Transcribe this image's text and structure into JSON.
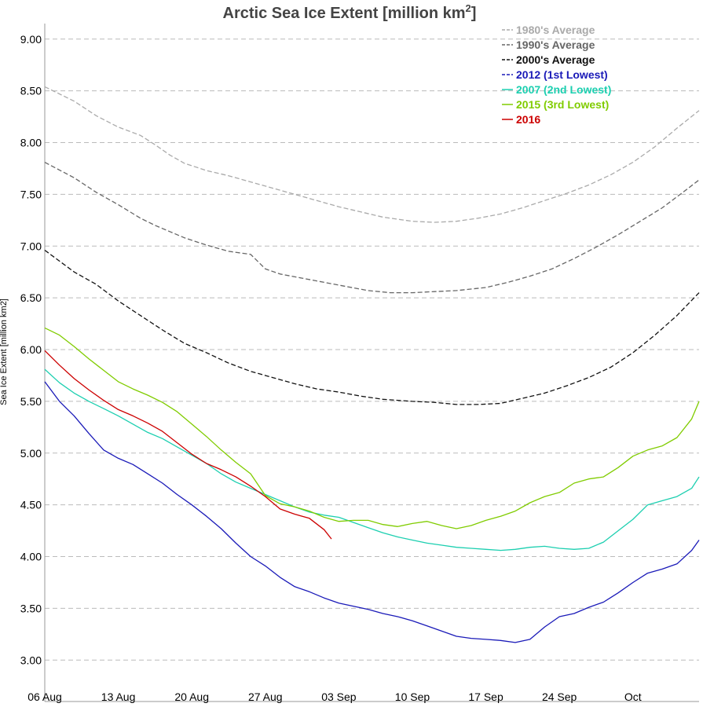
{
  "chart_data": {
    "type": "line",
    "title": "Arctic Sea Ice Extent [million km",
    "title_superscript": "2",
    "title_suffix": "]",
    "ylabel": "Sea Ice Extent [million km2]",
    "xlabel": "",
    "x_domain": [
      0,
      89
    ],
    "ylim": [
      2.6,
      9.15
    ],
    "grid": "horizontal-dashed",
    "legend_position": "top-right",
    "x_ticks": [
      {
        "x": 0,
        "label": "06 Aug"
      },
      {
        "x": 10,
        "label": "13 Aug"
      },
      {
        "x": 20,
        "label": "20 Aug"
      },
      {
        "x": 30,
        "label": "27 Aug"
      },
      {
        "x": 40,
        "label": "03 Sep"
      },
      {
        "x": 50,
        "label": "10 Sep"
      },
      {
        "x": 60,
        "label": "17 Sep"
      },
      {
        "x": 70,
        "label": "24 Sep"
      },
      {
        "x": 80,
        "label": "Oct"
      }
    ],
    "y_ticks": [
      "3.00",
      "3.50",
      "4.00",
      "4.50",
      "5.00",
      "5.50",
      "6.00",
      "6.50",
      "7.00",
      "7.50",
      "8.00",
      "8.50",
      "9.00"
    ],
    "series": [
      {
        "name": "1980's Average",
        "color": "#aaaaaa",
        "dashed": true,
        "x": [
          0,
          4,
          7,
          10,
          13,
          15,
          17,
          19,
          22,
          25,
          28,
          31,
          34,
          37,
          40,
          43,
          46,
          50,
          53,
          56,
          59,
          62,
          65,
          68,
          71,
          74,
          77,
          80,
          83,
          86,
          89
        ],
        "y": [
          8.54,
          8.4,
          8.26,
          8.15,
          8.07,
          7.98,
          7.88,
          7.8,
          7.73,
          7.68,
          7.62,
          7.56,
          7.5,
          7.44,
          7.38,
          7.33,
          7.28,
          7.24,
          7.23,
          7.24,
          7.27,
          7.31,
          7.37,
          7.44,
          7.51,
          7.59,
          7.69,
          7.81,
          7.96,
          8.14,
          8.31
        ]
      },
      {
        "name": "1990's Average",
        "color": "#666666",
        "dashed": true,
        "x": [
          0,
          4,
          7,
          10,
          13,
          15,
          17,
          19,
          22,
          25,
          27,
          28,
          30,
          32,
          35,
          38,
          41,
          44,
          47,
          50,
          53,
          56,
          60,
          63,
          66,
          69,
          72,
          75,
          78,
          81,
          84,
          87,
          89
        ],
        "y": [
          7.81,
          7.66,
          7.52,
          7.4,
          7.27,
          7.2,
          7.14,
          7.08,
          7.01,
          6.95,
          6.93,
          6.92,
          6.78,
          6.73,
          6.69,
          6.65,
          6.61,
          6.57,
          6.55,
          6.55,
          6.56,
          6.57,
          6.6,
          6.65,
          6.71,
          6.78,
          6.88,
          6.99,
          7.11,
          7.24,
          7.37,
          7.53,
          7.64
        ]
      },
      {
        "name": "2000's Average",
        "color": "#111111",
        "dashed": true,
        "x": [
          0,
          4,
          7,
          10,
          13,
          16,
          19,
          22,
          25,
          28,
          31,
          34,
          37,
          40,
          43,
          46,
          50,
          53,
          56,
          59,
          62,
          65,
          68,
          71,
          74,
          77,
          80,
          83,
          86,
          89
        ],
        "y": [
          6.96,
          6.75,
          6.63,
          6.47,
          6.33,
          6.19,
          6.06,
          5.97,
          5.87,
          5.79,
          5.73,
          5.67,
          5.62,
          5.59,
          5.55,
          5.52,
          5.5,
          5.49,
          5.47,
          5.47,
          5.48,
          5.53,
          5.58,
          5.65,
          5.73,
          5.83,
          5.97,
          6.14,
          6.33,
          6.55
        ]
      },
      {
        "name": "2012 (1st Lowest)",
        "color": "#1a1ab8",
        "dashed": true,
        "x": [
          0,
          2,
          4,
          6,
          8,
          10,
          12,
          14,
          16,
          18,
          20,
          22,
          24,
          26,
          28,
          30,
          32,
          34,
          36,
          38,
          40,
          42,
          44,
          46,
          48,
          50,
          52,
          54,
          56,
          58,
          60,
          62,
          64,
          66,
          68,
          70,
          72,
          74,
          76,
          78,
          80,
          82,
          84,
          86,
          88,
          89
        ],
        "y": [
          5.69,
          5.5,
          5.36,
          5.19,
          5.03,
          4.95,
          4.89,
          4.8,
          4.71,
          4.6,
          4.5,
          4.39,
          4.27,
          4.13,
          4.0,
          3.91,
          3.8,
          3.71,
          3.66,
          3.6,
          3.55,
          3.52,
          3.49,
          3.45,
          3.42,
          3.38,
          3.33,
          3.28,
          3.23,
          3.21,
          3.2,
          3.19,
          3.17,
          3.2,
          3.32,
          3.42,
          3.45,
          3.51,
          3.56,
          3.65,
          3.75,
          3.84,
          3.88,
          3.93,
          4.06,
          4.16
        ]
      },
      {
        "name": "2007 (2nd Lowest)",
        "color": "#1ccfb0",
        "dashed": false,
        "x": [
          0,
          2,
          4,
          6,
          8,
          10,
          12,
          14,
          16,
          18,
          20,
          22,
          24,
          26,
          28,
          30,
          32,
          34,
          36,
          38,
          40,
          42,
          44,
          46,
          48,
          50,
          52,
          54,
          56,
          58,
          60,
          62,
          64,
          66,
          68,
          70,
          72,
          74,
          76,
          78,
          80,
          82,
          84,
          86,
          88,
          89
        ],
        "y": [
          5.81,
          5.68,
          5.58,
          5.5,
          5.43,
          5.36,
          5.28,
          5.2,
          5.14,
          5.06,
          4.98,
          4.9,
          4.8,
          4.72,
          4.66,
          4.6,
          4.54,
          4.48,
          4.43,
          4.4,
          4.38,
          4.33,
          4.28,
          4.23,
          4.19,
          4.16,
          4.13,
          4.11,
          4.09,
          4.08,
          4.07,
          4.06,
          4.07,
          4.09,
          4.1,
          4.08,
          4.07,
          4.08,
          4.14,
          4.25,
          4.36,
          4.5,
          4.54,
          4.58,
          4.66,
          4.77
        ]
      },
      {
        "name": "2015 (3rd Lowest)",
        "color": "#80cc00",
        "dashed": false,
        "x": [
          0,
          2,
          4,
          6,
          8,
          10,
          12,
          14,
          16,
          18,
          20,
          22,
          24,
          26,
          28,
          30,
          32,
          34,
          36,
          38,
          40,
          42,
          44,
          46,
          48,
          50,
          52,
          54,
          56,
          58,
          60,
          62,
          64,
          66,
          68,
          70,
          72,
          74,
          76,
          78,
          80,
          82,
          84,
          86,
          88,
          89
        ],
        "y": [
          6.21,
          6.14,
          6.03,
          5.91,
          5.8,
          5.69,
          5.62,
          5.56,
          5.49,
          5.4,
          5.28,
          5.16,
          5.03,
          4.91,
          4.8,
          4.59,
          4.51,
          4.48,
          4.44,
          4.38,
          4.34,
          4.35,
          4.35,
          4.31,
          4.29,
          4.32,
          4.34,
          4.3,
          4.27,
          4.3,
          4.35,
          4.39,
          4.44,
          4.52,
          4.58,
          4.62,
          4.71,
          4.75,
          4.77,
          4.86,
          4.97,
          5.03,
          5.07,
          5.15,
          5.33,
          5.5
        ]
      },
      {
        "name": "2016",
        "color": "#cc0000",
        "dashed": false,
        "x": [
          0,
          2,
          4,
          6,
          8,
          10,
          12,
          14,
          16,
          18,
          20,
          22,
          24,
          26,
          28,
          30,
          32,
          34,
          36,
          38,
          39
        ],
        "y": [
          5.99,
          5.85,
          5.72,
          5.61,
          5.51,
          5.42,
          5.36,
          5.29,
          5.21,
          5.1,
          4.99,
          4.9,
          4.84,
          4.77,
          4.68,
          4.58,
          4.46,
          4.41,
          4.37,
          4.26,
          4.17
        ]
      }
    ]
  }
}
